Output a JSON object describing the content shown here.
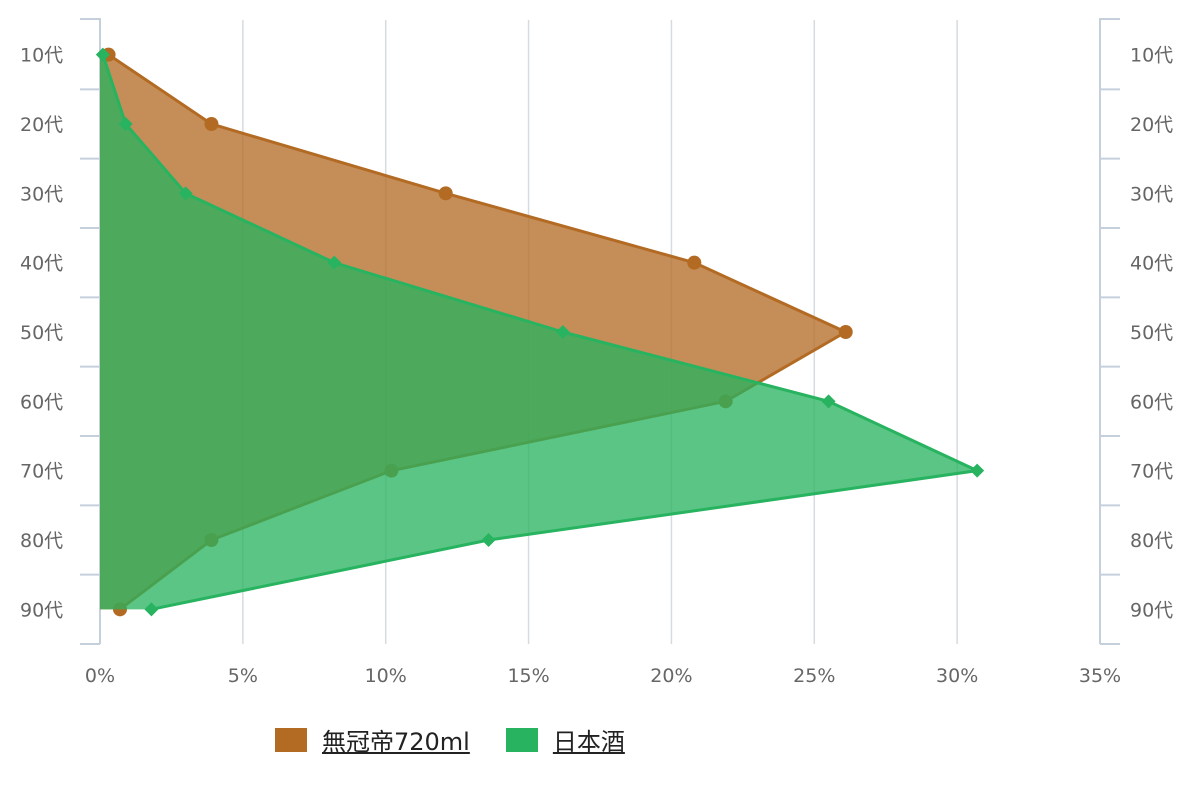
{
  "chart_data": {
    "type": "area",
    "orientation": "horizontal",
    "categories": [
      "10代",
      "20代",
      "30代",
      "40代",
      "50代",
      "60代",
      "70代",
      "80代",
      "90代"
    ],
    "xlim": [
      0,
      35
    ],
    "x_ticks": [
      "0%",
      "5%",
      "10%",
      "15%",
      "20%",
      "25%",
      "30%",
      "35%"
    ],
    "grid": true,
    "legend_position": "bottom",
    "series": [
      {
        "name": "無冠帝720ml",
        "color": "#b36b24",
        "marker": "circle",
        "values": [
          0.3,
          3.9,
          12.1,
          20.8,
          26.1,
          21.9,
          10.2,
          3.9,
          0.7
        ]
      },
      {
        "name": "日本酒",
        "color": "#27b35f",
        "marker": "diamond",
        "values": [
          0.1,
          0.9,
          3.0,
          8.2,
          16.2,
          25.5,
          30.7,
          13.6,
          1.8
        ]
      }
    ]
  }
}
